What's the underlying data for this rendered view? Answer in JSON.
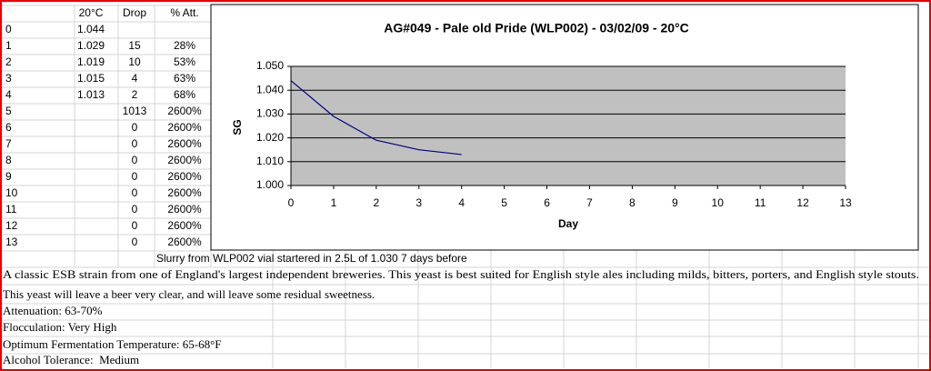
{
  "table": {
    "columns": [
      null,
      "20°C",
      "Drop",
      "% Att."
    ],
    "rows": [
      [
        "0",
        "1.044",
        null,
        null
      ],
      [
        "1",
        "1.029",
        "15",
        "28%"
      ],
      [
        "2",
        "1.019",
        "10",
        "53%"
      ],
      [
        "3",
        "1.015",
        "4",
        "63%"
      ],
      [
        "4",
        "1.013",
        "2",
        "68%"
      ],
      [
        "5",
        null,
        "1013",
        "2600%"
      ],
      [
        "6",
        null,
        "0",
        "2600%"
      ],
      [
        "7",
        null,
        "0",
        "2600%"
      ],
      [
        "8",
        null,
        "0",
        "2600%"
      ],
      [
        "9",
        null,
        "0",
        "2600%"
      ],
      [
        "10",
        null,
        "0",
        "2600%"
      ],
      [
        "11",
        null,
        "0",
        "2600%"
      ],
      [
        "12",
        null,
        "0",
        "2600%"
      ],
      [
        "13",
        null,
        "0",
        "2600%"
      ]
    ]
  },
  "chart_data": {
    "type": "line",
    "title": "AG#049 - Pale old Pride (WLP002) - 03/02/09 - 20°C",
    "x_label": "Day",
    "y_label": "SG",
    "x": [
      0,
      1,
      2,
      3,
      4
    ],
    "values": [
      1.044,
      1.029,
      1.019,
      1.015,
      1.013
    ],
    "color": "#000080",
    "xlim": [
      0,
      13
    ],
    "xticks": [
      0,
      1,
      2,
      3,
      4,
      5,
      6,
      7,
      8,
      9,
      10,
      11,
      12,
      13
    ],
    "ylim": [
      1,
      1.05
    ],
    "yticks": [
      {
        "value": 1,
        "label": "1.000"
      },
      {
        "value": 1.01,
        "label": "1.010"
      },
      {
        "value": 1.02,
        "label": "1.020"
      },
      {
        "value": 1.03,
        "label": "1.030"
      },
      {
        "value": 1.04,
        "label": "1.040"
      },
      {
        "value": 1.05,
        "label": "1.050"
      }
    ],
    "grid": true,
    "plot_background": "#c0c0c0"
  },
  "notes": {
    "chart_caption": "Slurry from WLP002 vial startered in 2.5L of 1.030 7 days before",
    "lines": [
      "A classic ESB strain from one of England's largest independent breweries. This yeast is best suited for English style ales including milds, bitters, porters, and English style stouts.",
      "This yeast will leave a beer very clear, and will leave some residual sweetness.",
      "Attenuation: 63-70%",
      "Flocculation: Very High",
      "Optimum Fermentation Temperature: 65-68°F",
      "Alcohol Tolerance:  Medium"
    ]
  }
}
